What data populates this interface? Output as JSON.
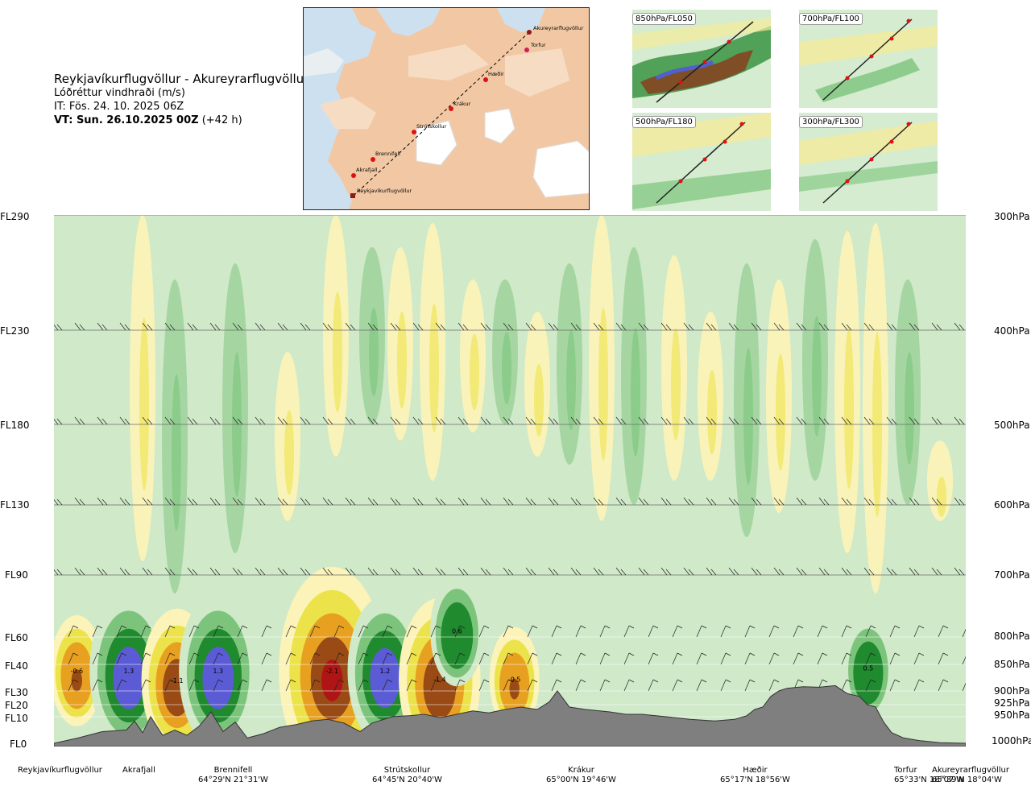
{
  "header": {
    "route": "Reykjavíkurflugvöllur - Akureyrarflugvöllur",
    "variable": "Lóðréttur vindhraði (m/s)",
    "issue_time": "IT: Fös. 24. 10. 2025 06Z",
    "valid_time": "VT: Sun. 26.10.2025 00Z",
    "lead": "(+42 h)"
  },
  "map": {
    "waypoints": [
      "Akureyrarflugvöllur",
      "Torfur",
      "Hæðir",
      "Krákur",
      "Strútskollur",
      "Brennifell",
      "Akrafjall",
      "Reykjavíkurflugvöllur"
    ]
  },
  "thumbnails": [
    {
      "label": "850hPa/FL050"
    },
    {
      "label": "700hPa/FL100"
    },
    {
      "label": "500hPa/FL180"
    },
    {
      "label": "300hPa/FL300"
    }
  ],
  "colors": {
    "strong_down_purple": "#5b5bd6",
    "down_dark_green": "#1f8a2e",
    "down_green": "#7cc47c",
    "down_light_green": "#cfe9c9",
    "up_light_yellow": "#fbf3b8",
    "up_yellow": "#ece34a",
    "up_orange": "#e8a020",
    "up_brown": "#9a4a15",
    "strong_up_red": "#b01515",
    "terrain": "#7f7f7f"
  },
  "chart_data": {
    "type": "heatmap",
    "title": "Reykjavíkurflugvöllur - Akureyrarflugvöllur",
    "subtitle": "Lóðréttur vindhraði (m/s)",
    "x_stations": [
      {
        "name": "Reykjavíkurflugvöllur",
        "coord": "",
        "x": 0.0
      },
      {
        "name": "Akrafjall",
        "coord": "",
        "x": 0.09
      },
      {
        "name": "Brennifell",
        "coord": "64°29'N 21°31'W",
        "x": 0.19
      },
      {
        "name": "Strútskollur",
        "coord": "64°45'N 20°40'W",
        "x": 0.38
      },
      {
        "name": "Krákur",
        "coord": "65°00'N 19°46'W",
        "x": 0.57
      },
      {
        "name": "Hæðir",
        "coord": "65°17'N 18°56'W",
        "x": 0.77
      },
      {
        "name": "Torfur",
        "coord": "65°33'N 18°07'W",
        "x": 0.94
      },
      {
        "name": "Akureyrarflugvöllur",
        "coord": "65°39'N 18°04'W",
        "x": 1.0
      }
    ],
    "levels": [
      {
        "fl": "FL290",
        "hpa": "300hPa",
        "p": 300
      },
      {
        "fl": "FL230",
        "hpa": "400hPa",
        "p": 400
      },
      {
        "fl": "FL180",
        "hpa": "500hPa",
        "p": 500
      },
      {
        "fl": "FL130",
        "hpa": "600hPa",
        "p": 600
      },
      {
        "fl": "FL90",
        "hpa": "700hPa",
        "p": 700
      },
      {
        "fl": "FL60",
        "hpa": "800hPa",
        "p": 800
      },
      {
        "fl": "FL40",
        "hpa": "850hPa",
        "p": 850
      },
      {
        "fl": "FL30",
        "hpa": "900hPa",
        "p": 900
      },
      {
        "fl": "FL20",
        "hpa": "925hPa",
        "p": 925
      },
      {
        "fl": "FL10",
        "hpa": "950hPa",
        "p": 950
      },
      {
        "fl": "FL0",
        "hpa": "1000hPa",
        "p": 1000
      }
    ],
    "yrange_hpa": [
      300,
      1000
    ],
    "cells": [
      {
        "x": 0.025,
        "p": 862,
        "v": -0.6,
        "label": "-0.6"
      },
      {
        "x": 0.082,
        "p": 862,
        "v": 1.3,
        "label": "1.3"
      },
      {
        "x": 0.135,
        "p": 880,
        "v": -1.1,
        "label": "-1.1"
      },
      {
        "x": 0.18,
        "p": 862,
        "v": 1.3,
        "label": "1.3"
      },
      {
        "x": 0.305,
        "p": 862,
        "v": -2.1,
        "label": "-2.1"
      },
      {
        "x": 0.363,
        "p": 862,
        "v": 1.2,
        "label": "1.2"
      },
      {
        "x": 0.423,
        "p": 878,
        "v": -1.4,
        "label": "-1.4"
      },
      {
        "x": 0.442,
        "p": 790,
        "v": 0.6,
        "label": "0.6"
      },
      {
        "x": 0.505,
        "p": 878,
        "v": -0.5,
        "label": "-0.5"
      },
      {
        "x": 0.893,
        "p": 857,
        "v": 0.5,
        "label": "0.5"
      }
    ]
  }
}
